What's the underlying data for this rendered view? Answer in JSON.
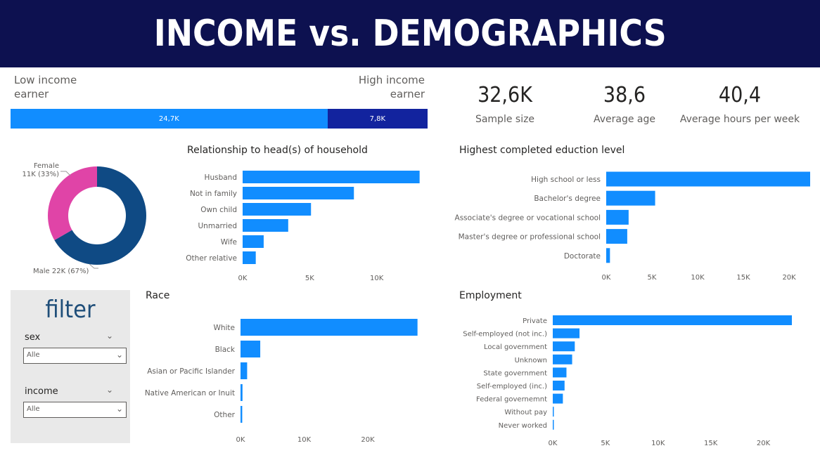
{
  "title": "INCOME vs. DEMOGRAPHICS",
  "income_split": {
    "low_label": "Low income earner",
    "high_label": "High income earner",
    "low_value_text": "24,7K",
    "high_value_text": "7,8K",
    "low_value": 24.7,
    "high_value": 7.8,
    "low_color": "#118dff",
    "high_color": "#12239e"
  },
  "kpis": {
    "sample": {
      "value": "32,6K",
      "label": "Sample size"
    },
    "age": {
      "value": "38,6",
      "label": "Average age"
    },
    "hours": {
      "value": "40,4",
      "label": "Average hours per week"
    }
  },
  "filter": {
    "title": "filter",
    "sex_label": "sex",
    "sex_value": "Alle",
    "income_label": "income",
    "income_value": "Alle",
    "chevron": "chevron-down-icon"
  },
  "chart_data": [
    {
      "id": "sex",
      "type": "pie",
      "categories": [
        "Female",
        "Male"
      ],
      "values": [
        11,
        22
      ],
      "data_labels": [
        "Female\n11K (33%)",
        "Male 22K (67%)"
      ],
      "colors": [
        "#e044a7",
        "#0f4a84"
      ]
    },
    {
      "id": "relationship",
      "type": "bar",
      "orientation": "horizontal",
      "title": "Relationship to head(s) of household",
      "categories": [
        "Husband",
        "Not in family",
        "Own child",
        "Unmarried",
        "Wife",
        "Other relative"
      ],
      "values": [
        13200,
        8300,
        5100,
        3400,
        1570,
        980
      ],
      "ticks": [
        "0K",
        "5K",
        "10K"
      ],
      "tick_values": [
        0,
        5000,
        10000
      ],
      "xlim": [
        0,
        13900
      ],
      "color": "#118dff"
    },
    {
      "id": "education",
      "type": "bar",
      "orientation": "horizontal",
      "title": "Highest completed eduction level",
      "categories": [
        "High school or less",
        "Bachelor's degree",
        "Associate's degree or vocational school",
        "Master's degree or professional school",
        "Doctorate"
      ],
      "values": [
        22300,
        5350,
        2450,
        2300,
        410
      ],
      "ticks": [
        "0K",
        "5K",
        "10K",
        "15K",
        "20K"
      ],
      "tick_values": [
        0,
        5000,
        10000,
        15000,
        20000
      ],
      "xlim": [
        0,
        22300
      ],
      "color": "#118dff"
    },
    {
      "id": "race",
      "type": "bar",
      "orientation": "horizontal",
      "title": "Race",
      "categories": [
        "White",
        "Black",
        "Asian or Pacific Islander",
        "Native American or Inuit",
        "Other"
      ],
      "values": [
        27800,
        3100,
        1040,
        310,
        270
      ],
      "ticks": [
        "0K",
        "10K",
        "20K"
      ],
      "tick_values": [
        0,
        10000,
        20000
      ],
      "xlim": [
        0,
        28500
      ],
      "color": "#118dff"
    },
    {
      "id": "employment",
      "type": "bar",
      "orientation": "horizontal",
      "title": "Employment",
      "categories": [
        "Private",
        "Self-employed (not inc.)",
        "Local government",
        "Unknown",
        "State government",
        "Self-employed (inc.)",
        "Federal governemnt",
        "Without pay",
        "Never worked"
      ],
      "values": [
        22700,
        2540,
        2090,
        1840,
        1300,
        1120,
        960,
        14,
        7
      ],
      "ticks": [
        "0K",
        "5K",
        "10K",
        "15K",
        "20K"
      ],
      "tick_values": [
        0,
        5000,
        10000,
        15000,
        20000
      ],
      "xlim": [
        0,
        23100
      ],
      "color": "#118dff"
    }
  ]
}
